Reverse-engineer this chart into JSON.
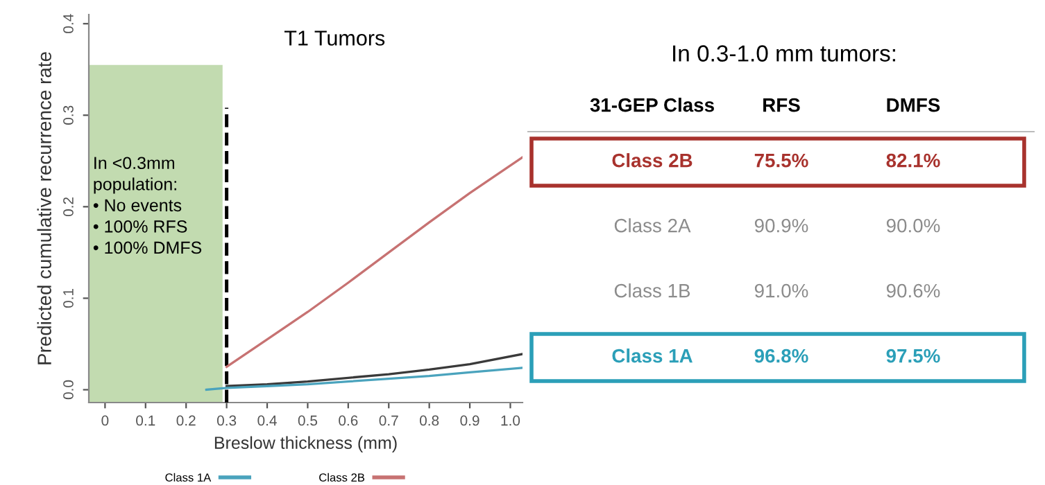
{
  "chart_data": [
    {
      "type": "line",
      "title": "T1 Tumors",
      "xlabel": "Breslow thickness (mm)",
      "ylabel": "Predicted cumulative recurrence rate",
      "xlim": [
        -0.04,
        1.03
      ],
      "ylim": [
        -0.014,
        0.41
      ],
      "xticks": [
        0,
        0.1,
        0.2,
        0.3,
        0.4,
        0.5,
        0.6,
        0.7,
        0.8,
        0.9,
        {
          "value": 1.0,
          "label": "1.0"
        }
      ],
      "yticks": [
        {
          "value": 0,
          "label": "0.0"
        },
        0.1,
        0.2,
        0.3,
        0.4
      ],
      "series": [
        {
          "color": "#3a3a3a",
          "x": [
            0.3,
            0.4,
            0.5,
            0.6,
            0.7,
            0.8,
            0.9,
            1.03
          ],
          "values": [
            0.004,
            0.006,
            0.009,
            0.013,
            0.017,
            0.022,
            0.028,
            0.039
          ]
        },
        {
          "name": "Class 1A",
          "color": "#4aa3bd",
          "x": [
            0.25,
            0.3,
            0.4,
            0.5,
            0.6,
            0.7,
            0.8,
            0.9,
            1.03
          ],
          "values": [
            0.0,
            0.002,
            0.004,
            0.006,
            0.009,
            0.012,
            0.015,
            0.019,
            0.024
          ]
        },
        {
          "name": "Class 2B",
          "color": "#c77272",
          "x": [
            0.3,
            0.4,
            0.5,
            0.6,
            0.7,
            0.8,
            0.9,
            1.03
          ],
          "values": [
            0.025,
            0.055,
            0.085,
            0.117,
            0.15,
            0.183,
            0.215,
            0.254
          ]
        }
      ],
      "bands": [
        {
          "axis": "x",
          "from": -0.04,
          "to": 0.29,
          "color": "#b3d29c"
        }
      ],
      "ref_lines": [
        {
          "axis": "x",
          "value": 0.3,
          "color": "#000000",
          "line_style": "dashed"
        }
      ],
      "annotations": [
        "In <0.3mm\npopulation:\n• No events\n• 100% RFS\n• 100% DMFS"
      ],
      "legend": "bottom",
      "marker": "none",
      "line_style": "solid",
      "grid": false
    },
    {
      "type": "other",
      "title": "In 0.3-1.0 mm tumors:",
      "annotations": [
        "31-GEP Class",
        "RFS",
        "DMFS",
        "Class 2B",
        "75.5%",
        "82.1%",
        "Class 2A",
        "90.9%",
        "90.0%",
        "Class 1B",
        "91.0%",
        "90.6%",
        "Class 1A",
        "96.8%",
        "97.5%"
      ],
      "colors": [
        "#a8322d",
        null,
        null,
        "#2b9fb8"
      ]
    }
  ]
}
